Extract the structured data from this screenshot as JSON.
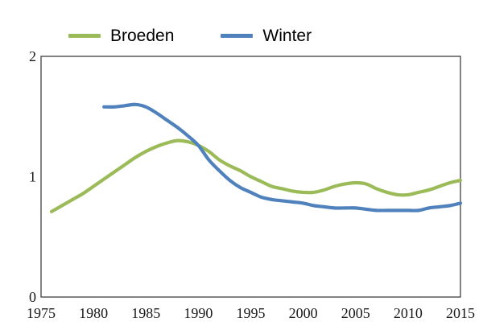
{
  "legend": {
    "items": [
      {
        "label": "Broeden",
        "color": "#9bbb59"
      },
      {
        "label": "Winter",
        "color": "#4f81bd"
      }
    ]
  },
  "colors": {
    "axis": "#404040",
    "tick_text": "#1a1a1a",
    "background": "#ffffff"
  },
  "chart_data": {
    "type": "line",
    "title": "",
    "xlabel": "",
    "ylabel": "",
    "xlim": [
      1975,
      2015
    ],
    "ylim": [
      0,
      2
    ],
    "x_ticks": [
      1975,
      1980,
      1985,
      1990,
      1995,
      2000,
      2005,
      2010,
      2015
    ],
    "y_ticks": [
      0,
      1,
      2
    ],
    "grid": false,
    "legend_position": "top-left",
    "series": [
      {
        "name": "Broeden",
        "color": "#9bbb59",
        "x": [
          1976,
          1977,
          1978,
          1979,
          1980,
          1981,
          1982,
          1983,
          1984,
          1985,
          1986,
          1987,
          1988,
          1989,
          1990,
          1991,
          1992,
          1993,
          1994,
          1995,
          1996,
          1997,
          1998,
          1999,
          2000,
          2001,
          2002,
          2003,
          2004,
          2005,
          2006,
          2007,
          2008,
          2009,
          2010,
          2011,
          2012,
          2013,
          2014,
          2015
        ],
        "values": [
          0.71,
          0.76,
          0.81,
          0.86,
          0.92,
          0.98,
          1.04,
          1.1,
          1.16,
          1.21,
          1.25,
          1.28,
          1.3,
          1.29,
          1.26,
          1.21,
          1.14,
          1.09,
          1.05,
          1.0,
          0.96,
          0.92,
          0.9,
          0.88,
          0.87,
          0.87,
          0.89,
          0.92,
          0.94,
          0.95,
          0.94,
          0.9,
          0.87,
          0.85,
          0.85,
          0.87,
          0.89,
          0.92,
          0.95,
          0.97
        ]
      },
      {
        "name": "Winter",
        "color": "#4f81bd",
        "x": [
          1981,
          1982,
          1983,
          1984,
          1985,
          1986,
          1987,
          1988,
          1989,
          1990,
          1991,
          1992,
          1993,
          1994,
          1995,
          1996,
          1997,
          1998,
          1999,
          2000,
          2001,
          2002,
          2003,
          2004,
          2005,
          2006,
          2007,
          2008,
          2009,
          2010,
          2011,
          2012,
          2013,
          2014,
          2015
        ],
        "values": [
          1.58,
          1.58,
          1.59,
          1.6,
          1.58,
          1.53,
          1.47,
          1.41,
          1.34,
          1.26,
          1.14,
          1.05,
          0.97,
          0.91,
          0.87,
          0.83,
          0.81,
          0.8,
          0.79,
          0.78,
          0.76,
          0.75,
          0.74,
          0.74,
          0.74,
          0.73,
          0.72,
          0.72,
          0.72,
          0.72,
          0.72,
          0.74,
          0.75,
          0.76,
          0.78
        ]
      }
    ]
  }
}
